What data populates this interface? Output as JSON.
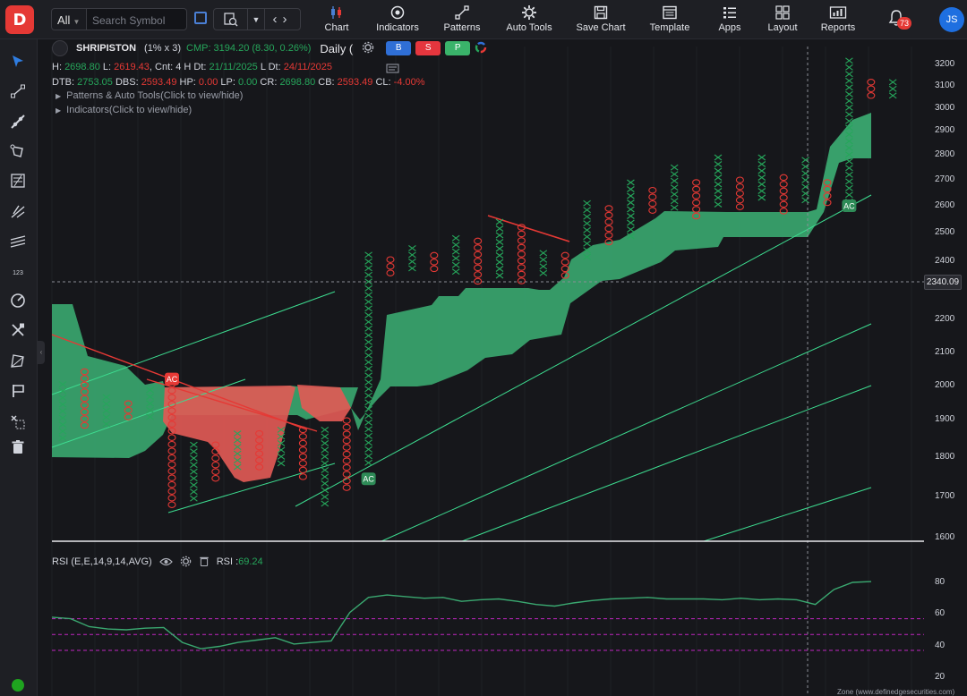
{
  "toolbar": {
    "market": "All",
    "search_placeholder": "Search Symbol",
    "menu": [
      {
        "label": "Chart",
        "icon": "candlestick-icon"
      },
      {
        "label": "Indicators",
        "icon": "indicators-icon"
      },
      {
        "label": "Patterns",
        "icon": "patterns-icon"
      },
      {
        "label": "Auto Tools",
        "icon": "auto-tools-icon"
      },
      {
        "label": "Save Chart",
        "icon": "save-icon"
      },
      {
        "label": "Template",
        "icon": "template-icon"
      },
      {
        "label": "Apps",
        "icon": "apps-icon"
      },
      {
        "label": "Layout",
        "icon": "layout-icon"
      },
      {
        "label": "Reports",
        "icon": "reports-icon"
      }
    ],
    "notification_count": "73",
    "user_initials": "JS"
  },
  "chart_header": {
    "symbol": "SHRIPISTON",
    "box_size": "(1% x 3)",
    "cmp": "CMP: 3194.20 (8.30, 0.26%)",
    "interval": "Daily (",
    "buttons": {
      "b": "B",
      "s": "S",
      "p": "P"
    },
    "line1": {
      "h_label": "H: ",
      "h": "2698.80",
      "l_label": " L: ",
      "l": "2619.43",
      "cnt": ", Cnt: 4 H Dt: ",
      "h_dt": "21/11/2025",
      "l_dt_label": " L Dt: ",
      "l_dt": "24/11/2025"
    },
    "line2": {
      "dtb_label": "DTB: ",
      "dtb": "2753.05",
      "dbs_label": " DBS: ",
      "dbs": "2593.49",
      "hp_label": " HP: ",
      "hp": "0.00",
      "lp_label": " LP: ",
      "lp": "0.00",
      "cr_label": " CR: ",
      "cr": "2698.80",
      "cb_label": " CB: ",
      "cb": "2593.49",
      "cl_label": " CL: ",
      "cl": "-4.00%"
    },
    "patterns_toggle": "Patterns & Auto Tools(Click to view/hide)",
    "indicators_toggle": "Indicators(Click to view/hide)"
  },
  "price_tag": "2340.09",
  "rsi": {
    "label": "RSI (E,E,14,9,14,AVG)",
    "value_label": "RSI : ",
    "value": "69.24"
  },
  "footer": "Zone (www.definedgesecurities.com)",
  "colors": {
    "x": "#26a65b",
    "o": "#e53935",
    "cloud_bull": "#3aa870",
    "cloud_bear": "#e05a55",
    "rsi": "#3aa870",
    "rsi_levels": "#c026c0"
  },
  "chart_data": [
    {
      "type": "point-and-figure",
      "y_ticks": [
        1600,
        1700,
        1800,
        1900,
        2000,
        2100,
        2200,
        2400,
        2500,
        2600,
        2700,
        2800,
        2900,
        3000,
        3100,
        3200
      ],
      "ylim": [
        1575,
        3230
      ],
      "columns": [
        {
          "t": "X",
          "low": 1848,
          "high": 2012
        },
        {
          "t": "O",
          "low": 1868,
          "high": 2050
        },
        {
          "t": "X",
          "low": 1886,
          "high": 1974
        },
        {
          "t": "O",
          "low": 1905,
          "high": 1955
        },
        {
          "t": "X",
          "low": 1905,
          "high": 1995
        },
        {
          "t": "O",
          "low": 1664,
          "high": 2013
        },
        {
          "t": "X",
          "low": 1680,
          "high": 1840
        },
        {
          "t": "O",
          "low": 1730,
          "high": 1840
        },
        {
          "t": "X",
          "low": 1765,
          "high": 1870
        },
        {
          "t": "O",
          "low": 1765,
          "high": 1870
        },
        {
          "t": "X",
          "low": 1780,
          "high": 1880
        },
        {
          "t": "O",
          "low": 1750,
          "high": 1880
        },
        {
          "t": "X",
          "low": 1678,
          "high": 1880
        },
        {
          "t": "O",
          "low": 1720,
          "high": 1905
        },
        {
          "t": "X",
          "low": 1770,
          "high": 2432
        },
        {
          "t": "O",
          "low": 2337,
          "high": 2415
        },
        {
          "t": "X",
          "low": 2360,
          "high": 2455
        },
        {
          "t": "O",
          "low": 2355,
          "high": 2430
        },
        {
          "t": "X",
          "low": 2355,
          "high": 2490
        },
        {
          "t": "O",
          "low": 2324,
          "high": 2480
        },
        {
          "t": "X",
          "low": 2345,
          "high": 2550
        },
        {
          "t": "O",
          "low": 2324,
          "high": 2530
        },
        {
          "t": "X",
          "low": 2345,
          "high": 2438
        },
        {
          "t": "O",
          "low": 2342,
          "high": 2430
        },
        {
          "t": "X",
          "low": 2395,
          "high": 2620
        },
        {
          "t": "O",
          "low": 2465,
          "high": 2600
        },
        {
          "t": "X",
          "low": 2478,
          "high": 2700
        },
        {
          "t": "O",
          "low": 2580,
          "high": 2670
        },
        {
          "t": "X",
          "low": 2580,
          "high": 2760
        },
        {
          "t": "O",
          "low": 2555,
          "high": 2700
        },
        {
          "t": "X",
          "low": 2590,
          "high": 2800
        },
        {
          "t": "O",
          "low": 2590,
          "high": 2710
        },
        {
          "t": "X",
          "low": 2610,
          "high": 2800
        },
        {
          "t": "O",
          "low": 2580,
          "high": 2720
        },
        {
          "t": "X",
          "low": 2600,
          "high": 2790
        },
        {
          "t": "O",
          "low": 2590,
          "high": 2700
        },
        {
          "t": "X",
          "low": 2615,
          "high": 3230
        },
        {
          "t": "O",
          "low": 3030,
          "high": 3130
        },
        {
          "t": "X",
          "low": 3030,
          "high": 3130
        }
      ],
      "ac_labels": [
        {
          "text": "AC",
          "col": 5,
          "y": 2020,
          "color": "#e53935"
        },
        {
          "text": "AC",
          "col": 14,
          "y": 1745,
          "color": "#2e8b57"
        },
        {
          "text": "AC",
          "col": 36,
          "y": 2600,
          "color": "#2e8b57"
        }
      ]
    },
    {
      "type": "line",
      "title": "RSI (E,E,14,9,14,AVG)",
      "y_ticks": [
        20,
        40,
        60,
        80
      ],
      "ylim": [
        18,
        90
      ],
      "levels": [
        57,
        47,
        37
      ],
      "values": [
        58,
        57,
        52,
        50.5,
        50,
        51,
        51.5,
        42,
        38,
        39.5,
        42,
        43.5,
        45,
        41,
        42,
        43,
        61,
        70.5,
        72,
        71,
        70,
        70.5,
        68,
        69,
        69.5,
        68,
        66,
        65,
        67,
        68.5,
        69.5,
        70,
        70.5,
        69.5,
        69.5,
        69.5,
        69,
        70,
        69,
        69.5,
        69,
        66,
        75.5,
        80,
        80.5
      ]
    }
  ]
}
